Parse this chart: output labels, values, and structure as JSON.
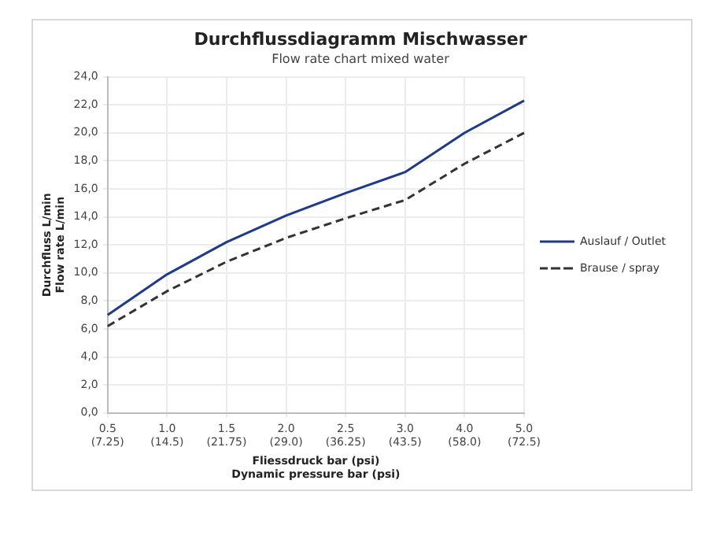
{
  "chart_data": {
    "type": "line",
    "title": "Durchflussdiagramm Mischwasser",
    "subtitle": "Flow rate chart mixed water",
    "xlabel": "Fliessdruck bar (psi)\nDynamic pressure bar (psi)",
    "ylabel": "Durchfluss L/min\nFlow rate L/min",
    "categories": [
      "0.5\n(7.25)",
      "1.0\n(14.5)",
      "1.5\n(21.75)",
      "2.0\n(29.0)",
      "2.5\n(36.25)",
      "3.0\n(43.5)",
      "4.0\n(58.0)",
      "5.0\n(72.5)"
    ],
    "series": [
      {
        "name": "Auslauf / Outlet",
        "color": "#1f3a8a",
        "line_style": "solid",
        "values": [
          7.0,
          9.9,
          12.2,
          14.1,
          15.7,
          17.2,
          20.0,
          22.3
        ]
      },
      {
        "name": "Brause / spray",
        "color": "#333333",
        "line_style": "dashed",
        "values": [
          6.2,
          8.7,
          10.8,
          12.5,
          13.9,
          15.2,
          17.8,
          20.0
        ]
      }
    ],
    "ylim": [
      0,
      24
    ],
    "yticks": [
      {
        "value": 0,
        "label": "0,0"
      },
      {
        "value": 2,
        "label": "2,0"
      },
      {
        "value": 4,
        "label": "4,0"
      },
      {
        "value": 6,
        "label": "6,0"
      },
      {
        "value": 8,
        "label": "8,0"
      },
      {
        "value": 10,
        "label": "10,0"
      },
      {
        "value": 12,
        "label": "12,0"
      },
      {
        "value": 14,
        "label": "14,0"
      },
      {
        "value": 16,
        "label": "16,0"
      },
      {
        "value": 18,
        "label": "18,0"
      },
      {
        "value": 20,
        "label": "20,0"
      },
      {
        "value": 22,
        "label": "22,0"
      },
      {
        "value": 24,
        "label": "24,0"
      }
    ],
    "grid": true,
    "legend": "right",
    "marker": "none"
  }
}
